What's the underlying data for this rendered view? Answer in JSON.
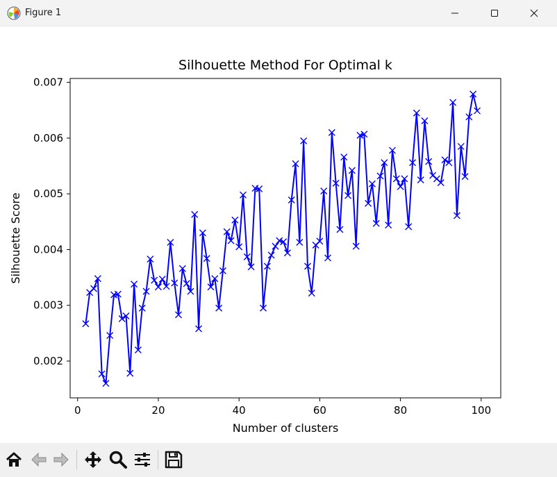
{
  "window": {
    "title": "Figure 1"
  },
  "toolbar": {
    "icons": [
      "home-icon",
      "back-icon",
      "forward-icon",
      "pan-icon",
      "zoom-icon",
      "configure-subplots-icon",
      "save-icon"
    ]
  },
  "chart_data": {
    "type": "line",
    "title": "Silhouette Method For Optimal k",
    "xlabel": "Number of clusters",
    "ylabel": "Silhouette Score",
    "xlim": [
      -1.85,
      104.85
    ],
    "ylim": [
      0.00134,
      0.00707
    ],
    "xticks": [
      0,
      20,
      40,
      60,
      80,
      100
    ],
    "yticks": [
      0.002,
      0.003,
      0.004,
      0.005,
      0.006,
      0.007
    ],
    "xtick_labels": [
      "0",
      "20",
      "40",
      "60",
      "80",
      "100"
    ],
    "ytick_labels": [
      "0.002",
      "0.003",
      "0.004",
      "0.005",
      "0.006",
      "0.007"
    ],
    "grid": false,
    "color": "#0000ff",
    "marker": "x",
    "x": [
      2,
      3,
      4,
      5,
      6,
      7,
      8,
      9,
      10,
      11,
      12,
      13,
      14,
      15,
      16,
      17,
      18,
      19,
      20,
      21,
      22,
      23,
      24,
      25,
      26,
      27,
      28,
      29,
      30,
      31,
      32,
      33,
      34,
      35,
      36,
      37,
      38,
      39,
      40,
      41,
      42,
      43,
      44,
      45,
      46,
      47,
      48,
      49,
      50,
      51,
      52,
      53,
      54,
      55,
      56,
      57,
      58,
      59,
      60,
      61,
      62,
      63,
      64,
      65,
      66,
      67,
      68,
      69,
      70,
      71,
      72,
      73,
      74,
      75,
      76,
      77,
      78,
      79,
      80,
      81,
      82,
      83,
      84,
      85,
      86,
      87,
      88,
      89,
      90,
      91,
      92,
      93,
      94,
      95,
      96,
      97,
      98,
      99
    ],
    "y": [
      0.00267,
      0.00323,
      0.0033,
      0.00348,
      0.00177,
      0.0016,
      0.00246,
      0.00319,
      0.0032,
      0.00276,
      0.00281,
      0.00178,
      0.00338,
      0.0022,
      0.00295,
      0.00325,
      0.00383,
      0.00345,
      0.00333,
      0.00347,
      0.00334,
      0.00413,
      0.0034,
      0.00283,
      0.00366,
      0.00339,
      0.00325,
      0.00463,
      0.00258,
      0.0043,
      0.00384,
      0.00333,
      0.00348,
      0.00295,
      0.00362,
      0.00432,
      0.00416,
      0.00453,
      0.00405,
      0.00498,
      0.00387,
      0.00369,
      0.0051,
      0.00509,
      0.00295,
      0.0037,
      0.0039,
      0.00406,
      0.00416,
      0.00414,
      0.00394,
      0.00489,
      0.00554,
      0.00413,
      0.00595,
      0.0037,
      0.00322,
      0.00408,
      0.00415,
      0.00505,
      0.00385,
      0.0061,
      0.00519,
      0.00436,
      0.00566,
      0.00497,
      0.00542,
      0.00406,
      0.00605,
      0.00607,
      0.00483,
      0.00518,
      0.00447,
      0.00532,
      0.00556,
      0.00444,
      0.00578,
      0.00527,
      0.00513,
      0.00527,
      0.00441,
      0.00556,
      0.00645,
      0.00525,
      0.00631,
      0.00558,
      0.00533,
      0.00527,
      0.0052,
      0.00561,
      0.00556,
      0.00664,
      0.00461,
      0.00585,
      0.00531,
      0.00638,
      0.00679,
      0.00649
    ]
  }
}
